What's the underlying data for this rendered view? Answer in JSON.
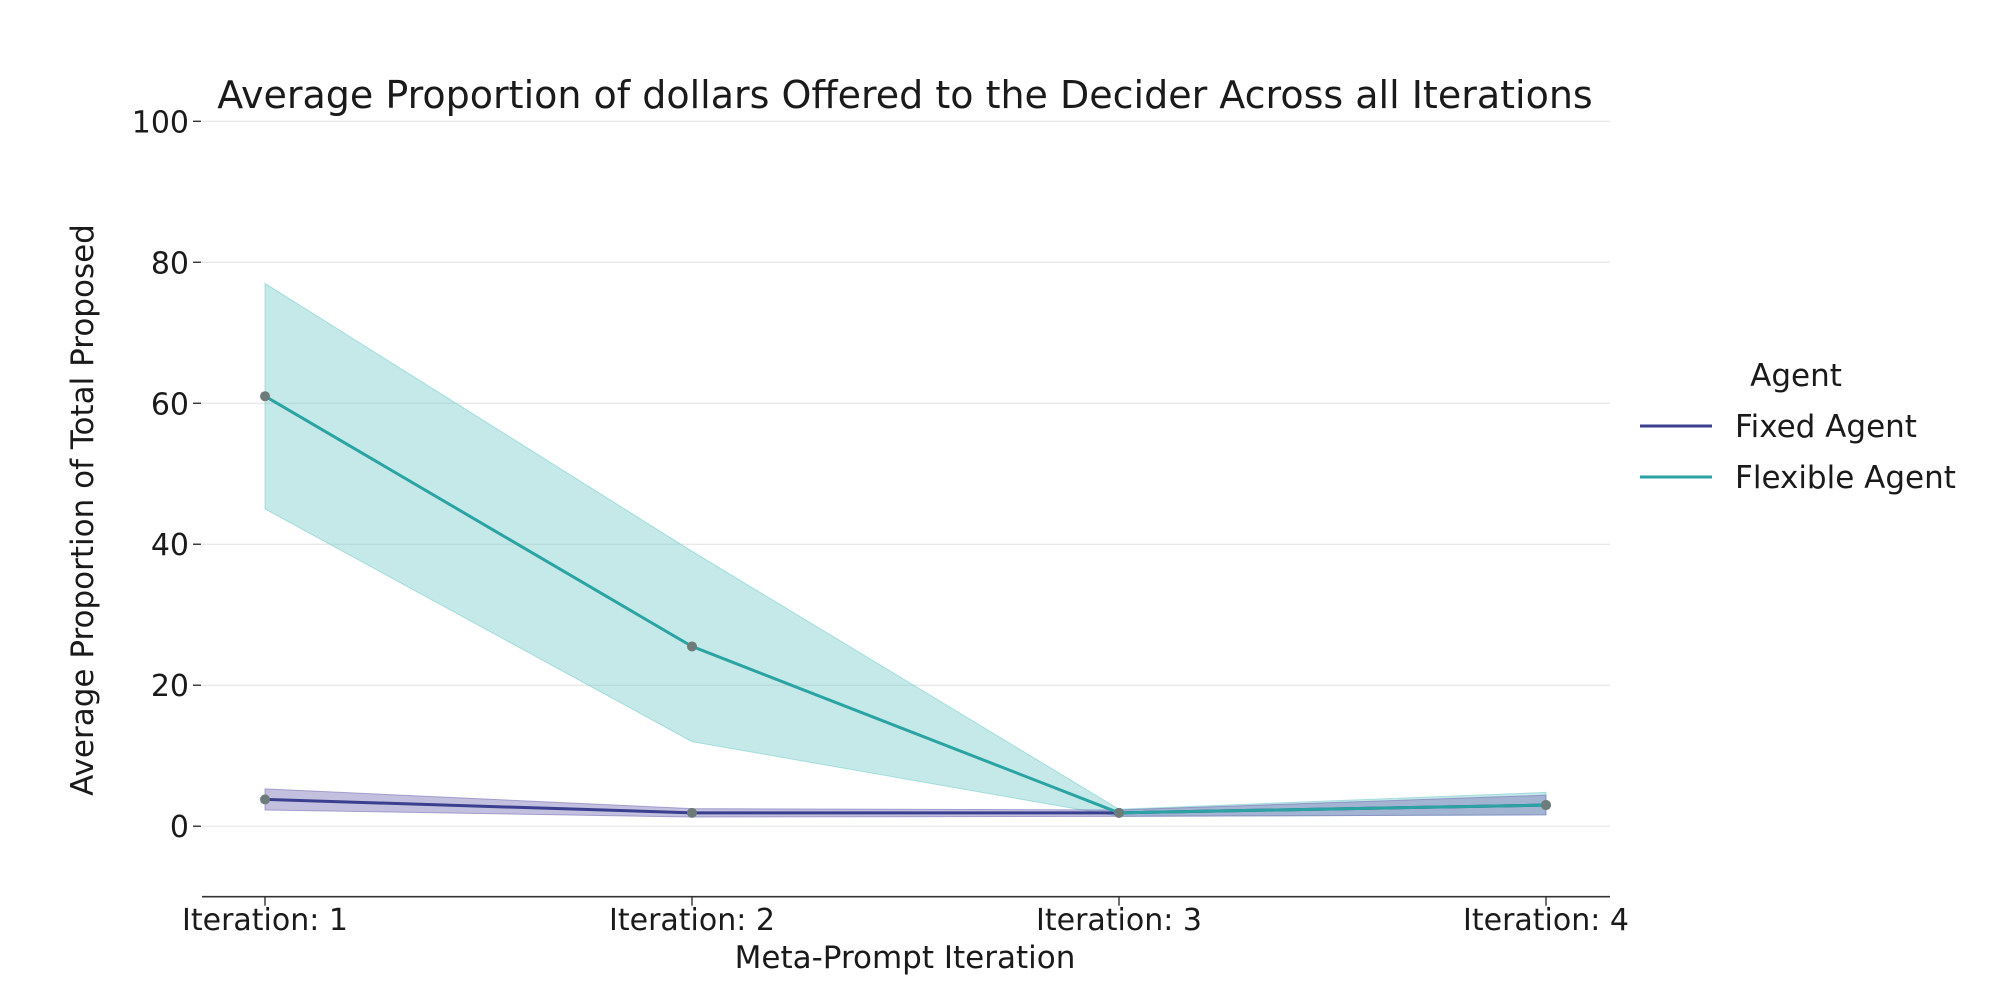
{
  "chart_data": {
    "type": "line",
    "title": "Average Proportion of dollars Offered to the Decider Across all Iterations",
    "xlabel": "Meta-Prompt Iteration",
    "ylabel": "Average Proportion of Total Proposed",
    "categories": [
      "Iteration: 1",
      "Iteration: 2",
      "Iteration: 3",
      "Iteration: 4"
    ],
    "ylim": [
      -10,
      100
    ],
    "yticks": [
      0,
      20,
      40,
      60,
      80,
      100
    ],
    "grid": "horizontal",
    "legend": {
      "title": "Agent",
      "placement": "right"
    },
    "series": [
      {
        "name": "Fixed Agent",
        "color": "#3b3f8f",
        "band_color": "#7a73b8",
        "values": [
          3.8,
          1.9,
          1.9,
          3.0
        ],
        "lower": [
          2.3,
          1.3,
          1.4,
          1.6
        ],
        "upper": [
          5.3,
          2.5,
          2.3,
          4.4
        ]
      },
      {
        "name": "Flexible Agent",
        "color": "#2ba3a3",
        "band_color": "#7fcfcf",
        "values": [
          61.0,
          25.5,
          1.9,
          3.0
        ],
        "lower": [
          45.0,
          12.0,
          1.4,
          1.6
        ],
        "upper": [
          77.0,
          39.0,
          2.4,
          4.8
        ]
      }
    ]
  }
}
